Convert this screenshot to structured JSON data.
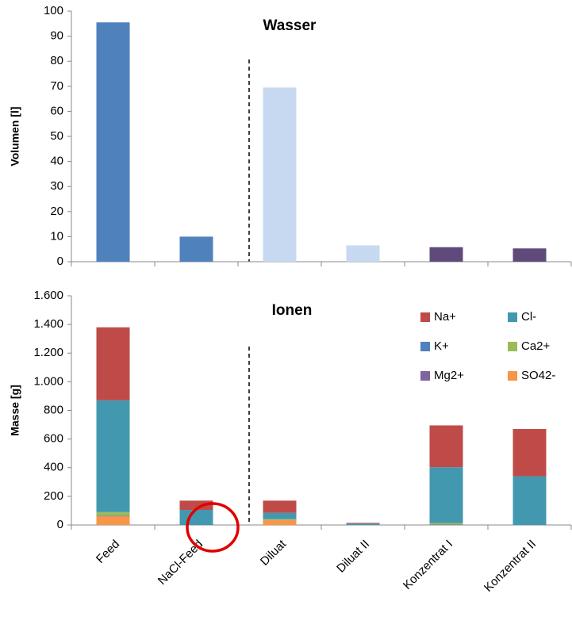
{
  "chart_data": [
    {
      "type": "bar",
      "title": "Wasser",
      "y_label": "Volumen [l]",
      "categories": [
        null,
        null,
        null,
        null,
        null,
        null
      ],
      "values": [
        95.5,
        10,
        69.5,
        6.5,
        5.8,
        5.3
      ],
      "colors": [
        "#4f81bd",
        "#4f81bd",
        "#c6d9f1",
        "#c6d9f1",
        "#604a7b",
        "#604a7b"
      ],
      "ylim": [
        0,
        100
      ],
      "yticks": [
        0,
        10,
        20,
        30,
        40,
        50,
        60,
        70,
        80,
        90,
        100
      ]
    },
    {
      "type": "stacked_bar",
      "title": "Ionen",
      "y_label": "Masse [g]",
      "categories": [
        "Feed",
        "NaCl-Feed",
        "Diluat",
        "Diluat II",
        "Konzentrat I",
        "Konzentrat II"
      ],
      "series": [
        {
          "name": "Na+",
          "color": "#be4b48",
          "values": [
            510,
            65,
            85,
            5,
            292,
            330
          ]
        },
        {
          "name": "Cl-",
          "color": "#4198af",
          "values": [
            780,
            105,
            45,
            10,
            390,
            340
          ]
        },
        {
          "name": "K+",
          "color": "#4f81bd",
          "values": [
            0,
            0,
            0,
            0,
            0,
            0
          ]
        },
        {
          "name": "Ca2+",
          "color": "#9bbb59",
          "values": [
            25,
            0,
            5,
            0,
            10,
            0
          ]
        },
        {
          "name": "Mg2+",
          "color": "#8064a2",
          "values": [
            5,
            0,
            0,
            0,
            3,
            0
          ]
        },
        {
          "name": "SO42-",
          "color": "#f79646",
          "values": [
            60,
            0,
            35,
            0,
            0,
            0
          ]
        }
      ],
      "ylim": [
        0,
        1600
      ],
      "yticks": [
        0,
        200,
        400,
        600,
        800,
        {
          "value": 1000,
          "label": "1.000"
        },
        {
          "value": 1200,
          "label": "1.200"
        },
        {
          "value": 1400,
          "label": "1.400"
        },
        {
          "value": 1600,
          "label": "1.600"
        }
      ]
    }
  ]
}
